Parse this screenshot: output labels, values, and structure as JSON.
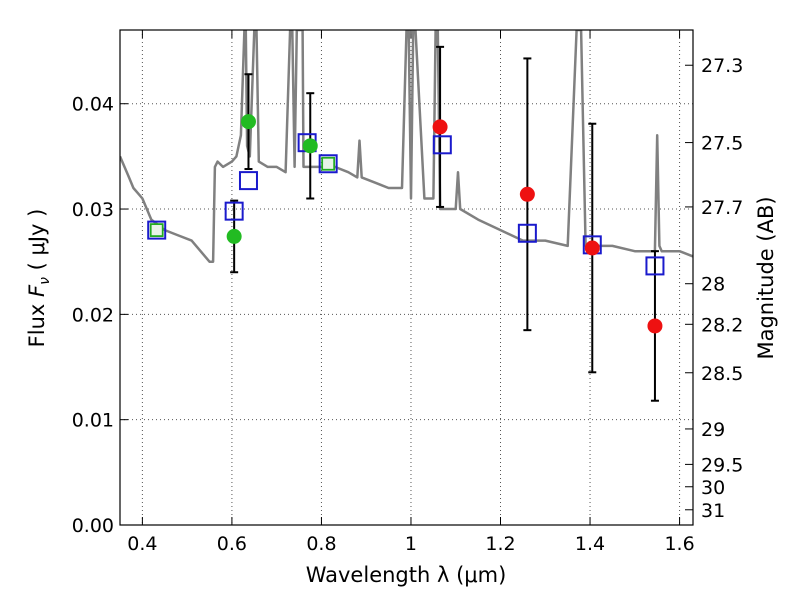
{
  "chart_data": {
    "type": "scatter",
    "xlabel": "Wavelength  λ (μm)",
    "ylabel": "Flux  F_ν  ( μJy )",
    "ylabel_parts": {
      "prefix": "Flux ",
      "symbol": "F",
      "subscript": "ν",
      "suffix": " ( μJy )"
    },
    "y2label": "Magnitude (AB)",
    "xlim": [
      0.35,
      1.63
    ],
    "ylim": [
      0.0,
      0.047
    ],
    "grid": true,
    "grid_style": "dotted",
    "xticks": [
      0.4,
      0.6,
      0.8,
      1.0,
      1.2,
      1.4,
      1.6
    ],
    "xtick_labels": [
      "0.4",
      "0.6",
      "0.8",
      "1",
      "1.2",
      "1.4",
      "1.6"
    ],
    "yticks": [
      0.0,
      0.01,
      0.02,
      0.03,
      0.04
    ],
    "ytick_labels": [
      "0.00",
      "0.01",
      "0.02",
      "0.03",
      "0.04"
    ],
    "y2_mag_ticks": [
      {
        "mag": 27.3,
        "label": "27.3"
      },
      {
        "mag": 27.5,
        "label": "27.5"
      },
      {
        "mag": 27.7,
        "label": "27.7"
      },
      {
        "mag": 28.0,
        "label": "28"
      },
      {
        "mag": 28.2,
        "label": "28.2"
      },
      {
        "mag": 28.5,
        "label": "28.5"
      },
      {
        "mag": 29.0,
        "label": "29"
      },
      {
        "mag": 29.5,
        "label": "29.5"
      },
      {
        "mag": 30.0,
        "label": "30"
      },
      {
        "mag": 31.0,
        "label": "31"
      }
    ],
    "colors": {
      "model": "#808080",
      "green_points": "#22bb22",
      "red_points": "#ee1111",
      "model_boxes": "#1a1acc",
      "inner_boxes": "#22aa22",
      "error_bars": "#000000",
      "grid": "#555555"
    },
    "model_spectrum": {
      "name": "",
      "x": [
        0.35,
        0.36,
        0.37,
        0.38,
        0.39,
        0.4,
        0.42,
        0.45,
        0.48,
        0.51,
        0.53,
        0.55,
        0.558,
        0.562,
        0.568,
        0.58,
        0.6,
        0.61,
        0.62,
        0.628,
        0.631,
        0.634,
        0.64,
        0.65,
        0.652,
        0.655,
        0.66,
        0.68,
        0.7,
        0.72,
        0.73,
        0.735,
        0.74,
        0.745,
        0.75,
        0.755,
        0.758,
        0.76,
        0.765,
        0.77,
        0.78,
        0.8,
        0.83,
        0.86,
        0.88,
        0.885,
        0.89,
        0.92,
        0.95,
        0.98,
        0.99,
        0.995,
        1.0,
        1.005,
        1.01,
        1.03,
        1.05,
        1.055,
        1.06,
        1.065,
        1.07,
        1.09,
        1.1,
        1.105,
        1.11,
        1.15,
        1.2,
        1.25,
        1.3,
        1.35,
        1.37,
        1.375,
        1.38,
        1.39,
        1.4,
        1.45,
        1.5,
        1.53,
        1.545,
        1.55,
        1.555,
        1.56,
        1.57,
        1.6,
        1.63
      ],
      "y": [
        0.035,
        0.034,
        0.033,
        0.032,
        0.0315,
        0.031,
        0.029,
        0.028,
        0.0275,
        0.027,
        0.026,
        0.025,
        0.025,
        0.034,
        0.0345,
        0.034,
        0.0345,
        0.035,
        0.037,
        0.047,
        0.047,
        0.036,
        0.035,
        0.047,
        0.047,
        0.047,
        0.0345,
        0.034,
        0.034,
        0.0335,
        0.047,
        0.047,
        0.034,
        0.047,
        0.047,
        0.047,
        0.047,
        0.034,
        0.034,
        0.034,
        0.034,
        0.034,
        0.034,
        0.0335,
        0.033,
        0.0365,
        0.033,
        0.0325,
        0.032,
        0.032,
        0.047,
        0.047,
        0.031,
        0.047,
        0.047,
        0.031,
        0.031,
        0.047,
        0.047,
        0.03,
        0.03,
        0.03,
        0.03,
        0.0335,
        0.03,
        0.029,
        0.028,
        0.027,
        0.027,
        0.0265,
        0.047,
        0.047,
        0.047,
        0.0265,
        0.0265,
        0.0265,
        0.026,
        0.026,
        0.026,
        0.037,
        0.0265,
        0.026,
        0.026,
        0.026,
        0.0255
      ]
    },
    "model_boxes": {
      "x": [
        0.432,
        0.605,
        0.637,
        0.768,
        0.815,
        1.07,
        1.26,
        1.405,
        1.545
      ],
      "y": [
        0.028,
        0.0298,
        0.0327,
        0.0363,
        0.0343,
        0.0361,
        0.0277,
        0.0266,
        0.0246
      ]
    },
    "inner_boxes": {
      "x": [
        0.432,
        0.815
      ],
      "y": [
        0.028,
        0.0343
      ]
    },
    "green_points": {
      "x": [
        0.605,
        0.637,
        0.775
      ],
      "y": [
        0.0274,
        0.0383,
        0.036
      ],
      "err_low": [
        0.0034,
        0.0045,
        0.005
      ],
      "err_high": [
        0.0034,
        0.0045,
        0.005
      ],
      "show_err": [
        true,
        true,
        true
      ]
    },
    "red_points": {
      "x": [
        1.065,
        1.26,
        1.405,
        1.545
      ],
      "y": [
        0.0378,
        0.0314,
        0.0263,
        0.0189
      ],
      "err_low": [
        0.0076,
        0.0129,
        0.0118,
        0.0071
      ],
      "err_high": [
        0.0076,
        0.0129,
        0.0118,
        0.0071
      ],
      "show_err": [
        true,
        true,
        true,
        true
      ]
    }
  }
}
